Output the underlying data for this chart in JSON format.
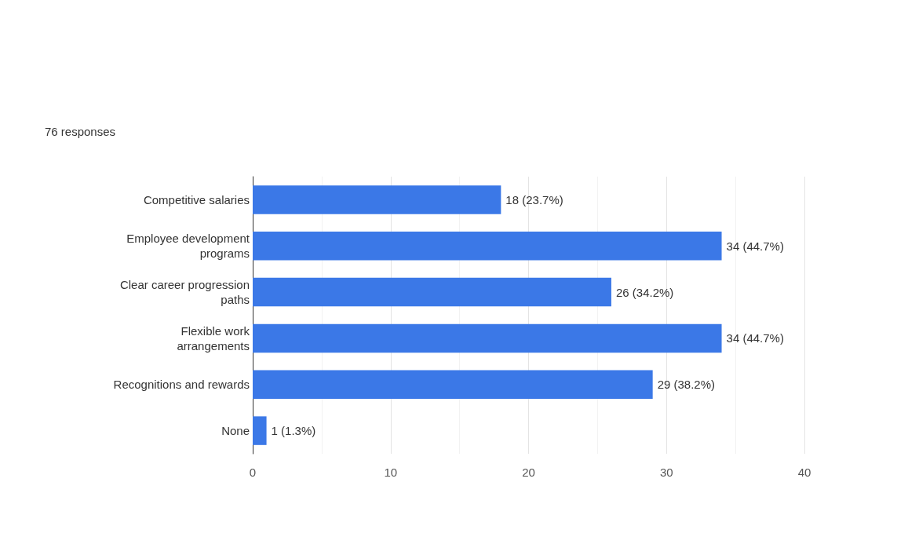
{
  "chart_data": {
    "type": "bar",
    "orientation": "horizontal",
    "title": "76 responses",
    "categories": [
      "Competitive salaries",
      "Employee development\nprograms",
      "Clear career progression\npaths",
      "Flexible work\narrangements",
      "Recognitions and rewards",
      "None"
    ],
    "values": [
      18,
      34,
      26,
      34,
      29,
      1
    ],
    "value_labels": [
      "18 (23.7%)",
      "34 (44.7%)",
      "26 (34.2%)",
      "34 (44.7%)",
      "29 (38.2%)",
      "1 (1.3%)"
    ],
    "color": "#3b78e7",
    "xlim": [
      0,
      40
    ],
    "xticks": [
      0,
      10,
      20,
      30,
      40
    ],
    "grid": "x"
  }
}
